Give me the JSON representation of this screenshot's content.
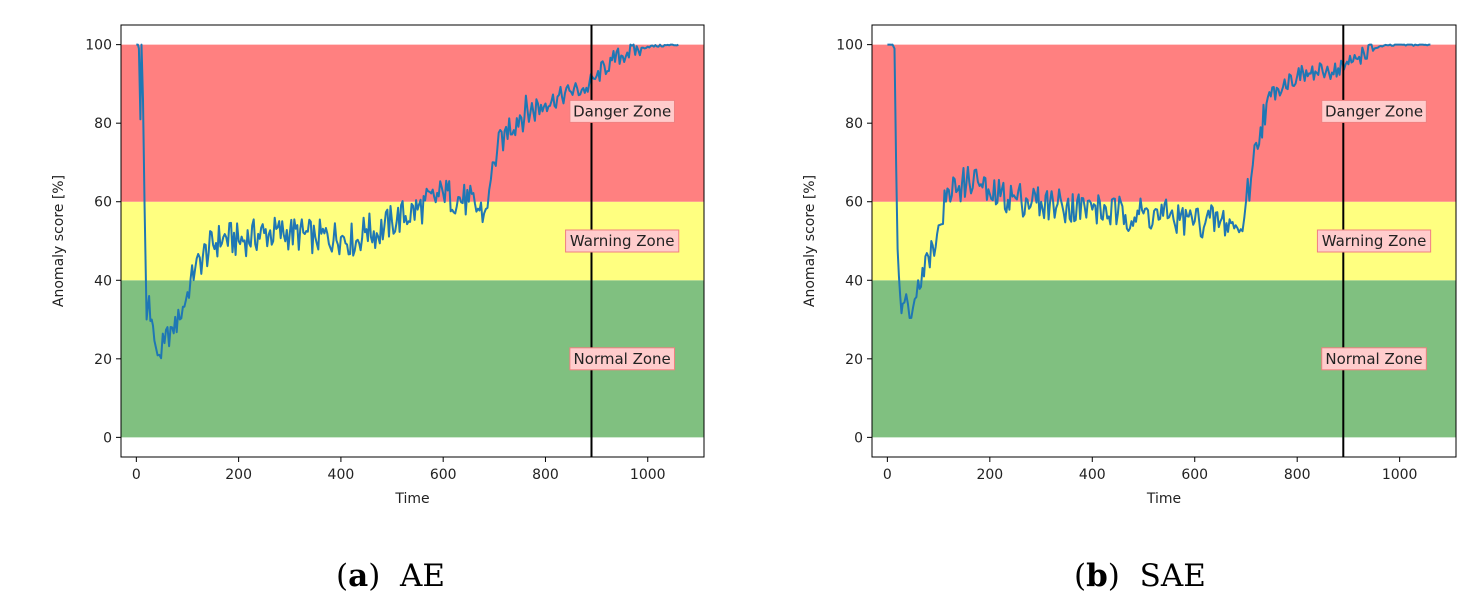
{
  "chart_data": [
    {
      "type": "line",
      "xlabel": "Time",
      "ylabel": "Anomaly score [%]",
      "xlim": [
        -30,
        1110
      ],
      "ylim": [
        -5,
        105
      ],
      "x_ticks": [
        0,
        200,
        400,
        600,
        800,
        1000
      ],
      "y_ticks": [
        0,
        20,
        40,
        60,
        80,
        100
      ],
      "vertical_line_x": 890,
      "zones": [
        {
          "name": "Normal Zone",
          "from": 0,
          "to": 40,
          "color": "#80c080",
          "label_x": 950,
          "label_y": 20
        },
        {
          "name": "Warning Zone",
          "from": 40,
          "to": 60,
          "color": "#ffff80",
          "label_x": 950,
          "label_y": 50
        },
        {
          "name": "Danger Zone",
          "from": 60,
          "to": 100,
          "color": "#ff8080",
          "label_x": 950,
          "label_y": 83
        }
      ],
      "series": [
        {
          "name": "AE",
          "color": "#1f77b4",
          "x": [
            0,
            3,
            5,
            8,
            10,
            13,
            16,
            20,
            25,
            30,
            38,
            45,
            55,
            70,
            85,
            100,
            115,
            130,
            150,
            170,
            200,
            250,
            300,
            350,
            400,
            430,
            450,
            470,
            500,
            550,
            600,
            650,
            680,
            690,
            700,
            720,
            750,
            800,
            850,
            880,
            900,
            930,
            960,
            1000,
            1060
          ],
          "values": [
            100,
            100,
            99,
            81,
            100,
            86,
            60,
            30,
            36,
            30,
            23,
            21,
            24,
            28,
            30,
            37,
            43,
            46,
            49,
            51,
            50,
            52,
            52,
            51,
            51,
            50,
            53,
            52,
            55,
            58,
            62,
            60,
            57,
            63,
            70,
            78,
            82,
            85,
            88,
            89,
            92,
            96,
            98,
            99.5,
            100
          ]
        }
      ],
      "panel_caption": {
        "letter": "a",
        "text": "AE"
      }
    },
    {
      "type": "line",
      "xlabel": "Time",
      "ylabel": "Anomaly score [%]",
      "xlim": [
        -30,
        1110
      ],
      "ylim": [
        -5,
        105
      ],
      "x_ticks": [
        0,
        200,
        400,
        600,
        800,
        1000
      ],
      "y_ticks": [
        0,
        20,
        40,
        60,
        80,
        100
      ],
      "vertical_line_x": 890,
      "zones": [
        {
          "name": "Normal Zone",
          "from": 0,
          "to": 40,
          "color": "#80c080",
          "label_x": 950,
          "label_y": 20
        },
        {
          "name": "Warning Zone",
          "from": 40,
          "to": 60,
          "color": "#ffff80",
          "label_x": 950,
          "label_y": 50
        },
        {
          "name": "Danger Zone",
          "from": 60,
          "to": 100,
          "color": "#ff8080",
          "label_x": 950,
          "label_y": 83
        }
      ],
      "series": [
        {
          "name": "SAE",
          "color": "#1f77b4",
          "x": [
            0,
            5,
            10,
            14,
            17,
            20,
            25,
            30,
            40,
            50,
            60,
            80,
            100,
            120,
            140,
            160,
            170,
            180,
            200,
            250,
            300,
            350,
            400,
            450,
            500,
            550,
            600,
            650,
            680,
            690,
            700,
            710,
            720,
            740,
            760,
            800,
            850,
            880,
            900,
            930,
            960,
            1000,
            1060
          ],
          "values": [
            100,
            100,
            100,
            99,
            70,
            48,
            36,
            34,
            34,
            33,
            40,
            46,
            54,
            63,
            64,
            65,
            68,
            64,
            62,
            61,
            60,
            59,
            58,
            57,
            57,
            56,
            55,
            55,
            54,
            53,
            60,
            66,
            75,
            85,
            89,
            92,
            93,
            94,
            95,
            98,
            99.5,
            100,
            100
          ]
        }
      ],
      "panel_caption": {
        "letter": "b",
        "text": "SAE"
      }
    }
  ]
}
